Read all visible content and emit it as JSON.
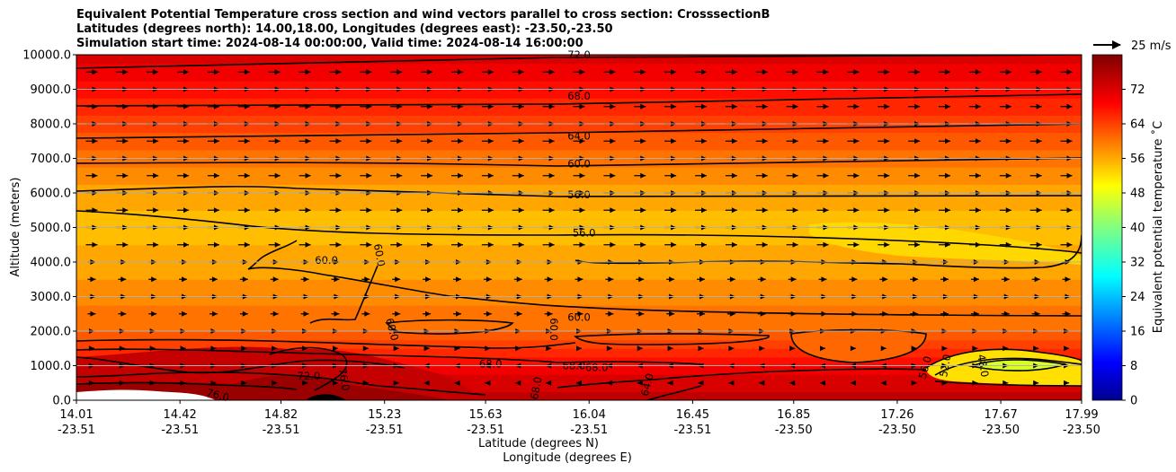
{
  "chart_data": {
    "type": "contour-with-vectors",
    "title_lines": [
      "Equivalent Potential Temperature cross section and wind vectors parallel to cross section: CrosssectionB",
      "Latitudes (degrees north): 14.00,18.00, Longitudes (degrees east): -23.50,-23.50",
      "Simulation start time: 2024-08-14 00:00:00, Valid time: 2024-08-14 16:00:00"
    ],
    "ylabel": "Altitude (meters)",
    "xlabel_lat": "Latitude (degrees N)",
    "xlabel_lon": "Longitude (degrees E)",
    "ylim": [
      0,
      10000
    ],
    "y_ticks": [
      0,
      1000,
      2000,
      3000,
      4000,
      5000,
      6000,
      7000,
      8000,
      9000,
      10000
    ],
    "y_tick_labels": [
      "0.0",
      "1000.0",
      "2000.0",
      "3000.0",
      "4000.0",
      "5000.0",
      "6000.0",
      "7000.0",
      "8000.0",
      "9000.0",
      "10000.0"
    ],
    "xlim": [
      14.01,
      17.99
    ],
    "x_ticks": [
      {
        "lat": "14.01",
        "lon": "-23.51",
        "pos": 14.01
      },
      {
        "lat": "14.42",
        "lon": "-23.51",
        "pos": 14.42
      },
      {
        "lat": "14.82",
        "lon": "-23.51",
        "pos": 14.82
      },
      {
        "lat": "15.23",
        "lon": "-23.51",
        "pos": 15.23
      },
      {
        "lat": "15.63",
        "lon": "-23.51",
        "pos": 15.63
      },
      {
        "lat": "16.04",
        "lon": "-23.51",
        "pos": 16.04
      },
      {
        "lat": "16.45",
        "lon": "-23.51",
        "pos": 16.45
      },
      {
        "lat": "16.85",
        "lon": "-23.50",
        "pos": 16.85
      },
      {
        "lat": "17.26",
        "lon": "-23.50",
        "pos": 17.26
      },
      {
        "lat": "17.67",
        "lon": "-23.50",
        "pos": 17.67
      },
      {
        "lat": "17.99",
        "lon": "-23.50",
        "pos": 17.99
      }
    ],
    "colorbar": {
      "label": "Equivalent potential temperature ˚C",
      "min": 0,
      "max": 80,
      "ticks": [
        0,
        8,
        16,
        24,
        32,
        40,
        48,
        56,
        64,
        72
      ],
      "tick_labels": [
        "0",
        "8",
        "16",
        "24",
        "32",
        "40",
        "48",
        "56",
        "64",
        "72"
      ],
      "colormap": "jet"
    },
    "quiver_key": {
      "label": "25 m/s",
      "speed": 25
    },
    "contour_labels": [
      {
        "text": "72.0",
        "lat": 16.0,
        "alt": 10000,
        "rot": 0
      },
      {
        "text": "68.0",
        "lat": 16.0,
        "alt": 8800,
        "rot": 0
      },
      {
        "text": "64.0",
        "lat": 16.0,
        "alt": 7650,
        "rot": 0
      },
      {
        "text": "60.0",
        "lat": 16.0,
        "alt": 6850,
        "rot": 0
      },
      {
        "text": "56.0",
        "lat": 16.0,
        "alt": 5950,
        "rot": 0
      },
      {
        "text": "56.0",
        "lat": 16.02,
        "alt": 4850,
        "rot": 0
      },
      {
        "text": "60.0",
        "lat": 15.0,
        "alt": 4050,
        "rot": 0
      },
      {
        "text": "60.0",
        "lat": 15.21,
        "alt": 4200,
        "rot": 80
      },
      {
        "text": "60.0",
        "lat": 15.26,
        "alt": 2050,
        "rot": 75
      },
      {
        "text": "60.0",
        "lat": 15.9,
        "alt": 2050,
        "rot": 90
      },
      {
        "text": "60.0",
        "lat": 16.0,
        "alt": 2400,
        "rot": 0
      },
      {
        "text": "68.0",
        "lat": 15.65,
        "alt": 1050,
        "rot": 0
      },
      {
        "text": "68.0",
        "lat": 15.98,
        "alt": 1000,
        "rot": 0
      },
      {
        "text": "68.0",
        "lat": 16.07,
        "alt": 950,
        "rot": 0
      },
      {
        "text": "68.0",
        "lat": 15.83,
        "alt": 350,
        "rot": -80
      },
      {
        "text": "64.0",
        "lat": 16.27,
        "alt": 450,
        "rot": -75
      },
      {
        "text": "72.0",
        "lat": 14.93,
        "alt": 700,
        "rot": 0
      },
      {
        "text": "76.0",
        "lat": 15.07,
        "alt": 600,
        "rot": 80
      },
      {
        "text": "76.0",
        "lat": 14.57,
        "alt": 150,
        "rot": 15
      },
      {
        "text": "56.0",
        "lat": 17.37,
        "alt": 950,
        "rot": -75
      },
      {
        "text": "52.0",
        "lat": 17.45,
        "alt": 1000,
        "rot": -80
      },
      {
        "text": "48.0",
        "lat": 17.6,
        "alt": 1000,
        "rot": 80
      }
    ],
    "theta_e_profile_c": [
      {
        "alt": 0,
        "value": 76
      },
      {
        "alt": 1000,
        "value": 70
      },
      {
        "alt": 2000,
        "value": 62
      },
      {
        "alt": 3000,
        "value": 59
      },
      {
        "alt": 4000,
        "value": 57
      },
      {
        "alt": 5000,
        "value": 55
      },
      {
        "alt": 6000,
        "value": 57
      },
      {
        "alt": 7000,
        "value": 61
      },
      {
        "alt": 8000,
        "value": 65
      },
      {
        "alt": 9000,
        "value": 69
      },
      {
        "alt": 10000,
        "value": 73
      }
    ]
  }
}
